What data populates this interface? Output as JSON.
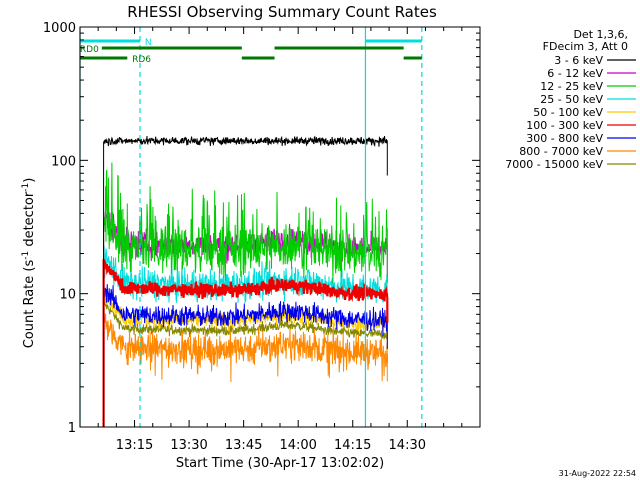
{
  "chart_data": {
    "type": "line",
    "title": "RHESSI Observing Summary Count Rates",
    "xlabel": "Start Time (30-Apr-17 13:02:02)",
    "ylabel_main": "Count Rate (s",
    "ylabel_sup1": "-1",
    "ylabel_mid": " detector",
    "ylabel_sup2": "-1",
    "ylabel_end": ")",
    "y_scale": "log",
    "ylim": [
      1,
      1000
    ],
    "xlim_minutes": [
      780,
      890
    ],
    "x_ticks": [
      {
        "m": 795,
        "label": "13:15"
      },
      {
        "m": 810,
        "label": "13:30"
      },
      {
        "m": 825,
        "label": "13:45"
      },
      {
        "m": 840,
        "label": "14:00"
      },
      {
        "m": 855,
        "label": "14:15"
      },
      {
        "m": 870,
        "label": "14:30"
      }
    ],
    "y_ticks": [
      {
        "v": 1,
        "label": "1"
      },
      {
        "v": 10,
        "label": "10"
      },
      {
        "v": 100,
        "label": "100"
      },
      {
        "v": 1000,
        "label": "1000"
      }
    ],
    "legend_header": [
      "Det 1,3,6,",
      "FDecim 3, Att 0"
    ],
    "legend_position": "right",
    "series": [
      {
        "name": "3 - 6 keV",
        "color": "#000000",
        "level": 140,
        "noise": 0.03
      },
      {
        "name": "6 - 12 keV",
        "color": "#cc00cc",
        "level": 24,
        "noise": 0.1
      },
      {
        "name": "12 - 25 keV",
        "color": "#00cc00",
        "level": 22,
        "noise": 0.18
      },
      {
        "name": "25 - 50 keV",
        "color": "#00dddd",
        "level": 12,
        "noise": 0.12
      },
      {
        "name": "50 - 100 keV",
        "color": "#ffcc00",
        "level": 6.5,
        "noise": 0.06
      },
      {
        "name": "100 - 300 keV",
        "color": "#ee0000",
        "level": 11,
        "noise": 0.05
      },
      {
        "name": "300 - 800 keV",
        "color": "#0000ee",
        "level": 7,
        "noise": 0.08
      },
      {
        "name": "800 - 7000 keV",
        "color": "#ff8800",
        "level": 4,
        "noise": 0.12
      },
      {
        "name": "7000 - 15000 keV",
        "color": "#888800",
        "level": 5.5,
        "noise": 0.04
      }
    ],
    "data_window_minutes": [
      786.5,
      864.5
    ],
    "vertical_markers": [
      {
        "m": 780.0,
        "style": "solid"
      },
      {
        "m": 796.5,
        "style": "dashed"
      },
      {
        "m": 858.5,
        "style": "solid"
      },
      {
        "m": 874.0,
        "style": "dashed"
      }
    ],
    "flag_bars": [
      {
        "label": "N",
        "color": "#00dddd",
        "segments": [
          [
            780,
            796.5
          ],
          [
            858.5,
            874
          ]
        ]
      },
      {
        "label": "RD0",
        "color": "#007700",
        "segments": [
          [
            786,
            824.5
          ],
          [
            833.5,
            869
          ]
        ]
      },
      {
        "label": "RD6",
        "color": "#007700",
        "segments": [
          [
            780,
            793
          ],
          [
            824.5,
            833.5
          ],
          [
            869,
            874
          ]
        ]
      }
    ],
    "timestamp": "31-Aug-2022 22:54"
  }
}
